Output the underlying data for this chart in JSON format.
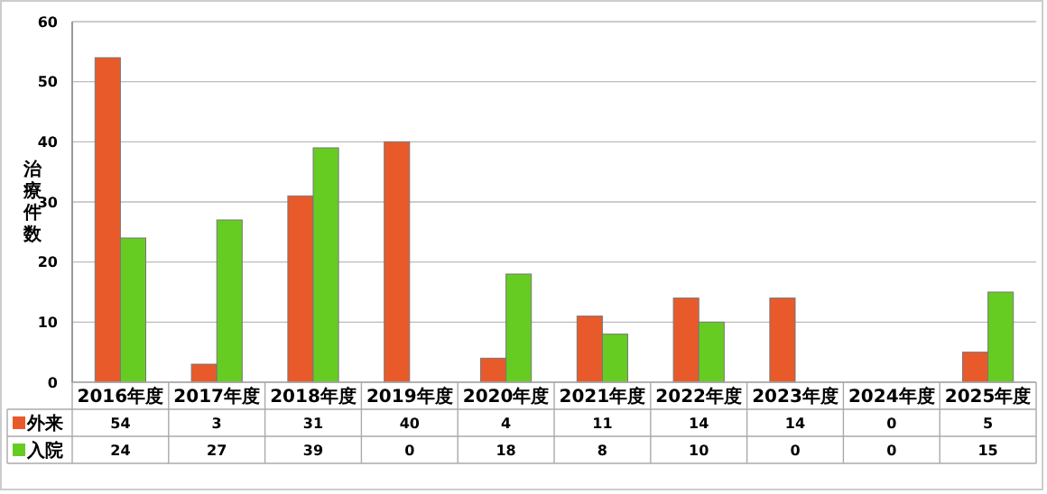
{
  "chart_data": {
    "type": "bar",
    "ylabel": "治療件数",
    "categories": [
      "2016年度",
      "2017年度",
      "2018年度",
      "2019年度",
      "2020年度",
      "2021年度",
      "2022年度",
      "2023年度",
      "2024年度",
      "2025年度"
    ],
    "series": [
      {
        "name": "外来",
        "color": "#e95a2b",
        "values": [
          54,
          3,
          31,
          40,
          4,
          11,
          14,
          14,
          0,
          5
        ]
      },
      {
        "name": "入院",
        "color": "#66cc22",
        "values": [
          24,
          27,
          39,
          0,
          18,
          8,
          10,
          0,
          0,
          15
        ]
      }
    ],
    "ylim": [
      0,
      60
    ],
    "yticks": [
      0,
      10,
      20,
      30,
      40,
      50,
      60
    ],
    "grid": "y",
    "legend": "bottom left",
    "data_labels": true
  }
}
